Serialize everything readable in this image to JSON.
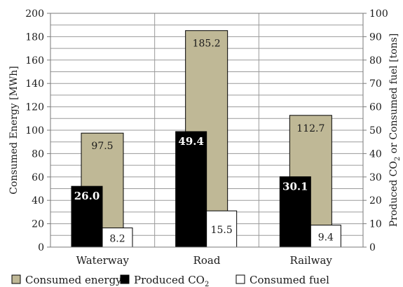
{
  "chart_data": {
    "type": "bar",
    "categories": [
      "Waterway",
      "Road",
      "Railway"
    ],
    "series": [
      {
        "name": "Consumed energy",
        "axis": "left",
        "color": "#bfb896",
        "label_color": "#1a1a1a",
        "values": [
          97.5,
          185.2,
          112.7
        ],
        "labels": [
          "97.5",
          "185.2",
          "112.7"
        ]
      },
      {
        "name": "Produced CO2",
        "axis": "right",
        "color": "#000000",
        "label_color": "#ffffff",
        "values": [
          26.0,
          49.4,
          30.1
        ],
        "labels": [
          "26.0",
          "49.4",
          "30.1"
        ]
      },
      {
        "name": "Consumed fuel",
        "axis": "right",
        "color": "#ffffff",
        "label_color": "#1a1a1a",
        "values": [
          8.2,
          15.5,
          9.4
        ],
        "labels": [
          "8.2",
          "15.5",
          "9.4"
        ]
      }
    ],
    "ylabel": "Consumed Energy [MWh]",
    "ylabel_right": "Produced CO2 or Consumed fuel [tons]",
    "ylim": [
      0,
      200
    ],
    "ylim_right": [
      0,
      100
    ],
    "yticks": [
      "0",
      "20",
      "40",
      "60",
      "80",
      "100",
      "120",
      "140",
      "160",
      "180",
      "200"
    ],
    "yticks_right": [
      "0",
      "10",
      "20",
      "30",
      "40",
      "50",
      "60",
      "70",
      "80",
      "90",
      "100"
    ],
    "legend": {
      "position": "bottom",
      "items": [
        {
          "label": "Consumed energy",
          "color": "#bfb896"
        },
        {
          "label": "Produced CO",
          "sub": "2",
          "color": "#000000"
        },
        {
          "label": "Consumed fuel",
          "color": "#ffffff"
        }
      ]
    },
    "grid": true
  }
}
